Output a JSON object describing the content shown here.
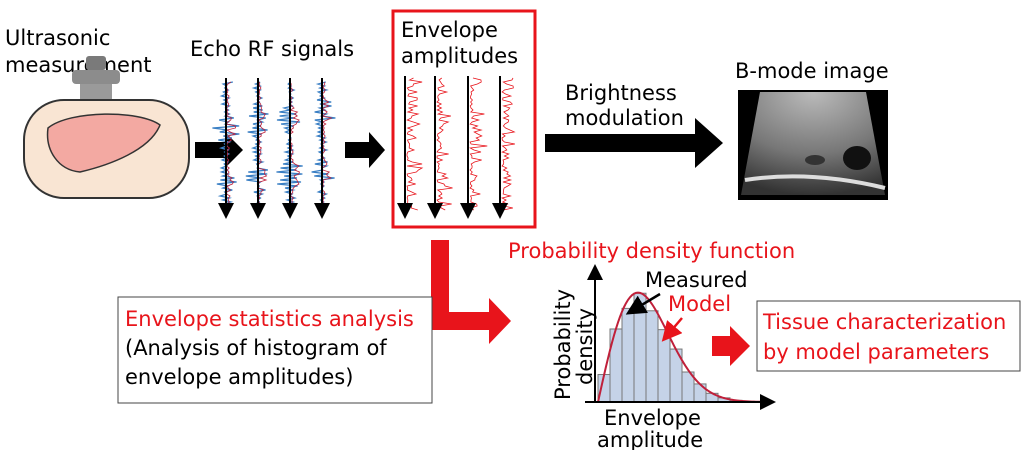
{
  "ultrasonic_label": [
    "Ultrasonic",
    "measurement"
  ],
  "echo_label": "Echo RF signals",
  "envelope_label": [
    "Envelope",
    "amplitudes"
  ],
  "brightness_label": [
    "Brightness",
    "modulation"
  ],
  "bmode_label": "B-mode image",
  "pdf_title": "Probability density function",
  "measured_label": "Measured",
  "model_label": "Model",
  "y_axis_label": [
    "Probability",
    "density"
  ],
  "x_axis_label": [
    "Envelope",
    "amplitude"
  ],
  "analysis_box": {
    "title": "Envelope statistics analysis",
    "lines": [
      "(Analysis of histogram of",
      "envelope amplitudes)"
    ]
  },
  "result_box": {
    "lines": [
      "Tissue characterization",
      "by model parameters"
    ]
  }
}
